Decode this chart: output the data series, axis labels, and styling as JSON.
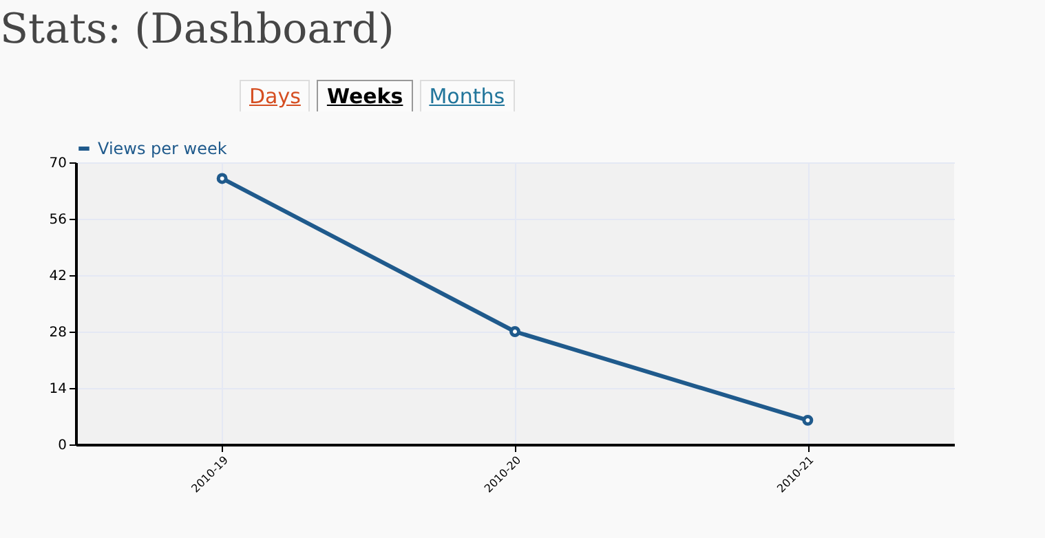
{
  "chart_data": {
    "type": "line",
    "title": "Stats: (Dashboard)",
    "annotations": [
      "Days",
      "Weeks",
      "Months"
    ],
    "categories": [
      "2010-19",
      "2010-20",
      "2010-21"
    ],
    "series": [
      {
        "name": "Views per week",
        "color": "#1f5a8c",
        "values": [
          66,
          28,
          6
        ]
      }
    ],
    "ylim": [
      0,
      70
    ],
    "yticks": [
      0,
      14,
      28,
      42,
      56,
      70
    ],
    "grid": true,
    "legend": "top left",
    "marker": "circle",
    "line_style": "solid"
  }
}
